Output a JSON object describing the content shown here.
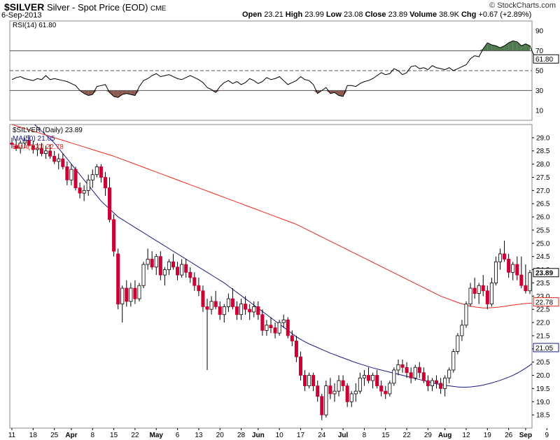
{
  "header": {
    "symbol": "$SILVER",
    "name": "Silver - Spot Price (EOD)",
    "exchange": "CME",
    "date": "6-Sep-2013",
    "open_label": "Open",
    "open": "23.21",
    "high_label": "High",
    "high": "23.99",
    "low_label": "Low",
    "low": "23.08",
    "close_label": "Close",
    "close": "23.89",
    "volume_label": "Volume",
    "volume": "38.9K",
    "chg_label": "Chg",
    "chg": "+0.67 (+2.89%)",
    "copyright": "© StockCharts.com"
  },
  "chart_data": [
    {
      "type": "line",
      "indicator": "RSI(14)",
      "legend_label": "RSI(14) 61.80",
      "current_value": "61.80",
      "ylim": [
        0,
        100
      ],
      "y_ticks": [
        10,
        30,
        50,
        70,
        90
      ],
      "overbought": 70,
      "oversold": 30,
      "midline": 50,
      "fill_colors": {
        "above70": "#4e7a4e",
        "below30": "#8b5a52"
      },
      "line_color": "#000000",
      "values": [
        41,
        43,
        44,
        42,
        41,
        40,
        42,
        41,
        45,
        41,
        42,
        41,
        40,
        39,
        37,
        35,
        30,
        27,
        25,
        26,
        34,
        35,
        36,
        28,
        24,
        23,
        26,
        27,
        26,
        25,
        34,
        40,
        42,
        45,
        47,
        44,
        45,
        46,
        44,
        42,
        41,
        43,
        45,
        43,
        41,
        38,
        33,
        31,
        28,
        34,
        38,
        40,
        37,
        39,
        36,
        38,
        42,
        40,
        37,
        39,
        43,
        41,
        42,
        44,
        40,
        36,
        38,
        40,
        44,
        41,
        40,
        36,
        27,
        30,
        33,
        27,
        28,
        25,
        24,
        35,
        35,
        34,
        37,
        39,
        40,
        42,
        45,
        48,
        46,
        47,
        52,
        50,
        46,
        48,
        54,
        55,
        52,
        53,
        51,
        55,
        53,
        52,
        51,
        53,
        50,
        52,
        54,
        56,
        62,
        65,
        64,
        72,
        78,
        76,
        75,
        73,
        75,
        78,
        80,
        79,
        75,
        77,
        75,
        65,
        62,
        58,
        62
      ]
    },
    {
      "type": "candlestick",
      "title": "$SILVER (Daily) 23.89",
      "series_labels": [
        {
          "name": "MA(50) 21.05",
          "color": "#1a1a80"
        },
        {
          "name": "EMA(100) 22.78",
          "color": "#e8281e"
        }
      ],
      "ylim": [
        18.0,
        29.5
      ],
      "y_ticks": [
        "18.5",
        "19.0",
        "19.5",
        "20.0",
        "20.5",
        "21.0",
        "21.5",
        "22.0",
        "22.5",
        "23.0",
        "23.5",
        "24.0",
        "24.5",
        "25.0",
        "25.5",
        "26.0",
        "26.5",
        "27.0",
        "27.5",
        "28.0",
        "28.5",
        "29.0"
      ],
      "last_close": "23.89",
      "ema_last": "22.78",
      "ma_last": "21.05",
      "up_color": "#ffffff",
      "down_color": "#cc0033",
      "x_labels": [
        {
          "label": "11",
          "index": 0
        },
        {
          "label": "18",
          "index": 5
        },
        {
          "label": "25",
          "index": 10
        },
        {
          "label": "Apr",
          "index": 14
        },
        {
          "label": "8",
          "index": 19
        },
        {
          "label": "15",
          "index": 24
        },
        {
          "label": "22",
          "index": 29
        },
        {
          "label": "May",
          "index": 34
        },
        {
          "label": "6",
          "index": 39
        },
        {
          "label": "13",
          "index": 44
        },
        {
          "label": "20",
          "index": 49
        },
        {
          "label": "28",
          "index": 54
        },
        {
          "label": "Jun",
          "index": 58
        },
        {
          "label": "10",
          "index": 63
        },
        {
          "label": "17",
          "index": 68
        },
        {
          "label": "24",
          "index": 73
        },
        {
          "label": "Jul",
          "index": 78
        },
        {
          "label": "8",
          "index": 83
        },
        {
          "label": "15",
          "index": 88
        },
        {
          "label": "22",
          "index": 93
        },
        {
          "label": "29",
          "index": 98
        },
        {
          "label": "Aug",
          "index": 102
        },
        {
          "label": "12",
          "index": 107
        },
        {
          "label": "19",
          "index": 112
        },
        {
          "label": "26",
          "index": 117
        },
        {
          "label": "Sep",
          "index": 121
        },
        {
          "label": "9",
          "index": 126
        }
      ],
      "ohlc": [
        [
          28.8,
          29.0,
          28.6,
          28.75
        ],
        [
          28.7,
          28.95,
          28.5,
          28.6
        ],
        [
          28.6,
          28.9,
          28.4,
          28.8
        ],
        [
          28.8,
          29.0,
          28.6,
          28.9
        ],
        [
          28.9,
          29.1,
          28.7,
          28.7
        ],
        [
          28.7,
          28.9,
          28.4,
          28.55
        ],
        [
          28.55,
          28.8,
          28.3,
          28.6
        ],
        [
          28.6,
          28.8,
          28.3,
          28.4
        ],
        [
          28.4,
          28.7,
          28.2,
          28.5
        ],
        [
          28.5,
          28.75,
          28.2,
          28.3
        ],
        [
          28.3,
          28.5,
          28.0,
          28.1
        ],
        [
          28.1,
          28.4,
          27.8,
          28.2
        ],
        [
          28.2,
          28.4,
          27.8,
          27.9
        ],
        [
          27.9,
          28.1,
          27.2,
          27.4
        ],
        [
          27.4,
          28.0,
          27.2,
          27.8
        ],
        [
          27.8,
          27.9,
          27.0,
          27.1
        ],
        [
          27.1,
          27.3,
          26.7,
          26.9
        ],
        [
          26.9,
          27.2,
          26.6,
          27.0
        ],
        [
          27.0,
          27.6,
          26.8,
          27.4
        ],
        [
          27.4,
          27.8,
          27.1,
          27.6
        ],
        [
          27.6,
          28.0,
          27.5,
          27.9
        ],
        [
          27.9,
          28.0,
          27.3,
          27.5
        ],
        [
          27.5,
          27.7,
          26.8,
          27.1
        ],
        [
          27.1,
          27.5,
          25.8,
          25.9
        ],
        [
          25.9,
          26.1,
          24.5,
          24.7
        ],
        [
          24.6,
          24.8,
          22.5,
          22.7
        ],
        [
          22.7,
          23.4,
          22.0,
          23.3
        ],
        [
          23.3,
          23.6,
          22.6,
          22.8
        ],
        [
          22.8,
          23.5,
          22.6,
          23.3
        ],
        [
          23.3,
          23.6,
          22.7,
          22.9
        ],
        [
          22.9,
          23.5,
          22.8,
          23.4
        ],
        [
          23.4,
          24.3,
          23.3,
          24.2
        ],
        [
          24.2,
          24.8,
          24.0,
          24.4
        ],
        [
          24.4,
          24.7,
          24.0,
          24.1
        ],
        [
          24.1,
          24.6,
          23.8,
          24.5
        ],
        [
          24.5,
          24.7,
          23.6,
          23.8
        ],
        [
          23.8,
          24.1,
          23.4,
          24.0
        ],
        [
          24.0,
          24.4,
          23.8,
          24.3
        ],
        [
          24.3,
          24.6,
          24.0,
          24.1
        ],
        [
          24.1,
          24.3,
          23.6,
          23.8
        ],
        [
          23.8,
          24.4,
          23.7,
          24.2
        ],
        [
          24.2,
          24.4,
          23.7,
          23.9
        ],
        [
          23.9,
          24.1,
          23.5,
          23.7
        ],
        [
          23.7,
          23.9,
          23.2,
          23.4
        ],
        [
          23.4,
          23.7,
          23.0,
          23.2
        ],
        [
          23.2,
          23.4,
          22.4,
          22.6
        ],
        [
          22.6,
          22.9,
          20.2,
          22.5
        ],
        [
          22.5,
          23.0,
          22.3,
          22.8
        ],
        [
          22.8,
          23.2,
          22.5,
          22.6
        ],
        [
          22.6,
          22.8,
          22.1,
          22.3
        ],
        [
          22.3,
          22.7,
          22.0,
          22.6
        ],
        [
          22.6,
          23.1,
          22.4,
          22.9
        ],
        [
          22.9,
          23.3,
          22.5,
          22.6
        ],
        [
          22.6,
          22.8,
          22.1,
          22.3
        ],
        [
          22.3,
          22.9,
          22.1,
          22.7
        ],
        [
          22.7,
          23.0,
          22.3,
          22.5
        ],
        [
          22.5,
          22.7,
          22.1,
          22.4
        ],
        [
          22.4,
          22.8,
          22.2,
          22.6
        ],
        [
          22.6,
          22.8,
          22.1,
          22.3
        ],
        [
          22.3,
          22.5,
          21.5,
          21.7
        ],
        [
          21.7,
          22.1,
          21.5,
          21.9
        ],
        [
          21.9,
          22.2,
          21.6,
          21.8
        ],
        [
          21.8,
          22.0,
          21.4,
          21.6
        ],
        [
          21.6,
          22.1,
          21.5,
          22.0
        ],
        [
          22.0,
          22.3,
          21.8,
          22.1
        ],
        [
          22.1,
          22.2,
          21.4,
          21.5
        ],
        [
          21.5,
          21.7,
          21.1,
          21.3
        ],
        [
          21.3,
          21.5,
          20.5,
          20.7
        ],
        [
          20.7,
          20.9,
          19.8,
          20.0
        ],
        [
          20.0,
          20.2,
          19.4,
          19.6
        ],
        [
          19.6,
          20.1,
          19.5,
          20.0
        ],
        [
          20.0,
          20.1,
          19.4,
          19.6
        ],
        [
          19.6,
          19.8,
          19.0,
          19.2
        ],
        [
          19.2,
          19.3,
          18.3,
          18.5
        ],
        [
          18.5,
          19.8,
          18.4,
          19.6
        ],
        [
          19.6,
          19.9,
          19.1,
          19.3
        ],
        [
          19.3,
          19.7,
          19.0,
          19.4
        ],
        [
          19.4,
          20.0,
          19.2,
          19.8
        ],
        [
          19.8,
          20.0,
          19.4,
          19.6
        ],
        [
          19.6,
          19.7,
          18.8,
          19.0
        ],
        [
          19.0,
          19.4,
          18.8,
          19.3
        ],
        [
          19.3,
          19.7,
          19.0,
          19.4
        ],
        [
          19.4,
          20.1,
          19.3,
          19.9
        ],
        [
          19.9,
          20.2,
          19.6,
          20.0
        ],
        [
          20.0,
          20.3,
          19.7,
          19.8
        ],
        [
          19.8,
          20.1,
          19.5,
          20.0
        ],
        [
          20.0,
          20.2,
          19.5,
          19.6
        ],
        [
          19.6,
          19.8,
          19.2,
          19.4
        ],
        [
          19.4,
          19.6,
          19.1,
          19.3
        ],
        [
          19.3,
          19.8,
          19.2,
          19.7
        ],
        [
          19.7,
          20.3,
          19.6,
          20.2
        ],
        [
          20.2,
          20.6,
          20.0,
          20.4
        ],
        [
          20.4,
          20.6,
          20.1,
          20.3
        ],
        [
          20.3,
          20.5,
          19.9,
          20.1
        ],
        [
          20.1,
          20.3,
          19.7,
          19.9
        ],
        [
          19.9,
          20.4,
          19.8,
          20.3
        ],
        [
          20.3,
          20.5,
          19.9,
          20.1
        ],
        [
          20.1,
          20.3,
          19.7,
          19.8
        ],
        [
          19.8,
          20.0,
          19.4,
          19.6
        ],
        [
          19.6,
          19.9,
          19.4,
          19.8
        ],
        [
          19.8,
          20.0,
          19.5,
          19.7
        ],
        [
          19.7,
          19.9,
          19.3,
          19.5
        ],
        [
          19.5,
          20.0,
          19.2,
          19.9
        ],
        [
          19.9,
          20.3,
          19.7,
          20.2
        ],
        [
          20.2,
          21.0,
          20.1,
          20.9
        ],
        [
          20.9,
          21.6,
          20.8,
          21.5
        ],
        [
          21.5,
          22.1,
          21.3,
          21.9
        ],
        [
          21.9,
          22.8,
          21.8,
          22.7
        ],
        [
          22.7,
          23.5,
          22.6,
          23.3
        ],
        [
          23.3,
          23.7,
          22.9,
          23.1
        ],
        [
          23.1,
          23.5,
          22.7,
          23.4
        ],
        [
          23.4,
          23.8,
          23.0,
          23.2
        ],
        [
          23.2,
          23.4,
          22.5,
          22.7
        ],
        [
          22.7,
          23.7,
          22.6,
          23.5
        ],
        [
          23.5,
          24.5,
          23.4,
          24.3
        ],
        [
          24.3,
          24.8,
          24.0,
          24.6
        ],
        [
          24.6,
          25.1,
          24.3,
          24.4
        ],
        [
          24.4,
          24.6,
          23.7,
          23.9
        ],
        [
          23.9,
          24.3,
          23.6,
          24.2
        ],
        [
          24.2,
          24.5,
          23.6,
          23.8
        ],
        [
          23.8,
          24.5,
          23.3,
          23.4
        ],
        [
          23.4,
          24.2,
          23.1,
          23.2
        ],
        [
          23.2,
          23.99,
          23.08,
          23.89
        ]
      ],
      "ma50": [
        30.1,
        30.0,
        29.9,
        29.8,
        29.7,
        29.55,
        29.4,
        29.25,
        29.1,
        28.95,
        28.8,
        28.6,
        28.4,
        28.2,
        28.0,
        27.8,
        27.6,
        27.4,
        27.2,
        27.0,
        26.8,
        26.6,
        26.45,
        26.3,
        26.15,
        26.0,
        25.9,
        25.8,
        25.7,
        25.6,
        25.5,
        25.4,
        25.3,
        25.2,
        25.1,
        25.0,
        24.9,
        24.8,
        24.7,
        24.6,
        24.5,
        24.4,
        24.3,
        24.2,
        24.1,
        24.0,
        23.9,
        23.8,
        23.7,
        23.6,
        23.5,
        23.38,
        23.26,
        23.14,
        23.02,
        22.9,
        22.78,
        22.66,
        22.54,
        22.42,
        22.3,
        22.18,
        22.06,
        21.94,
        21.82,
        21.7,
        21.58,
        21.46,
        21.36,
        21.27,
        21.19,
        21.12,
        21.05,
        20.98,
        20.91,
        20.84,
        20.78,
        20.72,
        20.66,
        20.6,
        20.54,
        20.48,
        20.43,
        20.38,
        20.33,
        20.28,
        20.24,
        20.2,
        20.16,
        20.12,
        20.08,
        20.04,
        20.0,
        19.96,
        19.92,
        19.88,
        19.84,
        19.8,
        19.76,
        19.72,
        19.68,
        19.65,
        19.62,
        19.6,
        19.58,
        19.56,
        19.55,
        19.55,
        19.56,
        19.58,
        19.6,
        19.63,
        19.67,
        19.71,
        19.76,
        19.81,
        19.87,
        19.93,
        20.0,
        20.08,
        20.17,
        20.27,
        20.38,
        20.5,
        20.63,
        20.77,
        21.05
      ],
      "ema100": [
        29.5,
        29.45,
        29.4,
        29.35,
        29.3,
        29.25,
        29.2,
        29.15,
        29.1,
        29.05,
        29.0,
        28.95,
        28.9,
        28.85,
        28.8,
        28.75,
        28.7,
        28.65,
        28.6,
        28.55,
        28.5,
        28.45,
        28.4,
        28.35,
        28.3,
        28.24,
        28.18,
        28.12,
        28.06,
        28.0,
        27.94,
        27.88,
        27.82,
        27.76,
        27.7,
        27.64,
        27.58,
        27.52,
        27.46,
        27.4,
        27.34,
        27.28,
        27.22,
        27.16,
        27.1,
        27.04,
        26.98,
        26.92,
        26.86,
        26.8,
        26.74,
        26.68,
        26.62,
        26.56,
        26.5,
        26.44,
        26.38,
        26.32,
        26.26,
        26.2,
        26.14,
        26.08,
        26.02,
        25.96,
        25.9,
        25.84,
        25.78,
        25.72,
        25.64,
        25.56,
        25.48,
        25.4,
        25.32,
        25.24,
        25.16,
        25.08,
        25.0,
        24.92,
        24.84,
        24.76,
        24.68,
        24.6,
        24.52,
        24.44,
        24.36,
        24.28,
        24.2,
        24.12,
        24.04,
        23.96,
        23.88,
        23.8,
        23.72,
        23.64,
        23.56,
        23.48,
        23.4,
        23.32,
        23.24,
        23.16,
        23.08,
        23.0,
        22.94,
        22.88,
        22.82,
        22.76,
        22.71,
        22.66,
        22.62,
        22.59,
        22.57,
        22.55,
        22.55,
        22.56,
        22.57,
        22.59,
        22.61,
        22.64,
        22.66,
        22.68,
        22.7,
        22.72,
        22.73,
        22.74,
        22.75,
        22.76,
        22.78
      ]
    }
  ]
}
